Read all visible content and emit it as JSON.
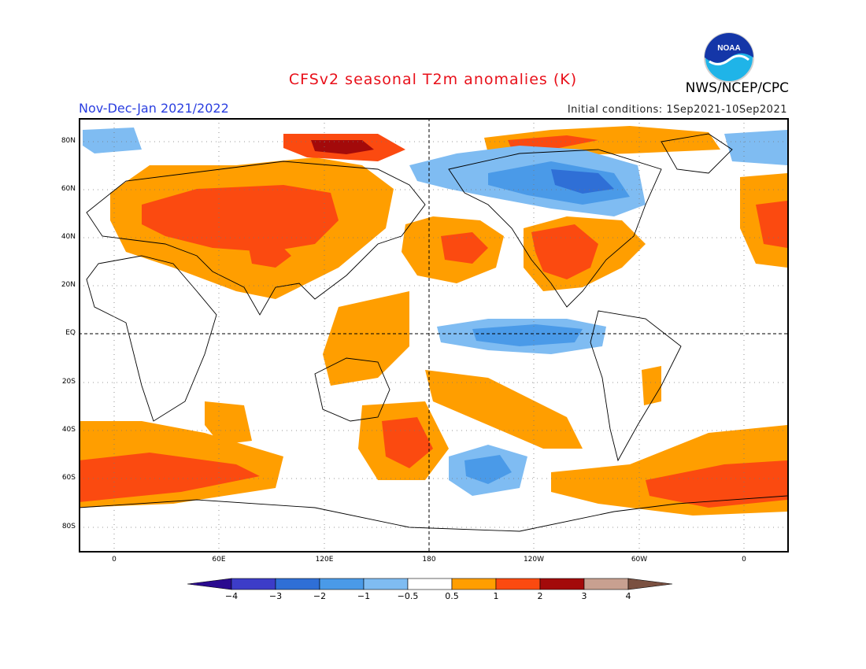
{
  "header": {
    "title": "CFSv2 seasonal T2m anomalies (K)",
    "period": "Nov-Dec-Jan 2021/2022",
    "initial_conditions": "Initial conditions: 1Sep2021-10Sep2021",
    "agency": "NWS/NCEP/CPC",
    "logo_text": "NOAA"
  },
  "map": {
    "lat_labels": [
      "80N",
      "60N",
      "40N",
      "20N",
      "EQ",
      "20S",
      "40S",
      "60S",
      "80S"
    ],
    "lon_labels": [
      "0",
      "60E",
      "120E",
      "180",
      "120W",
      "60W",
      "0"
    ],
    "colors": {
      "neg4": "#2a0a8f",
      "neg3": "#3c3cc8",
      "neg2": "#2f6fd6",
      "neg1": "#4a9ae8",
      "neg05": "#7fbcf2",
      "zero": "#ffffff",
      "pos05": "#ff9e00",
      "pos1": "#fb4a10",
      "pos2": "#a30a0a",
      "pos3": "#c8a090",
      "pos4": "#7a5040"
    }
  },
  "colorbar": {
    "labels": [
      "−4",
      "−3",
      "−2",
      "−1",
      "−0.5",
      "0.5",
      "1",
      "2",
      "3",
      "4"
    ],
    "colors": [
      "#2a0a8f",
      "#3c3cc8",
      "#2f6fd6",
      "#4a9ae8",
      "#7fbcf2",
      "#ffffff",
      "#ff9e00",
      "#fb4a10",
      "#a30a0a",
      "#c8a090",
      "#7a5040"
    ]
  }
}
